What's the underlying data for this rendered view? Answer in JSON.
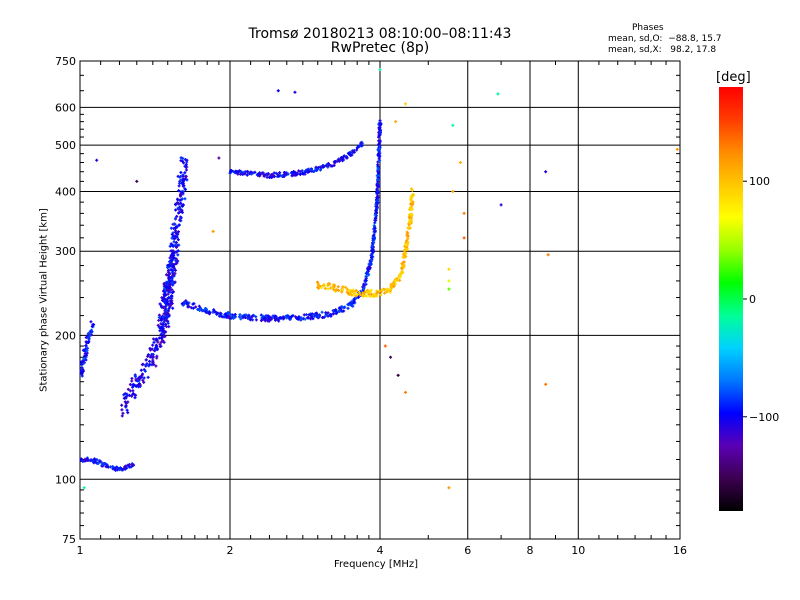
{
  "header": {
    "title": "Tromsø 20180213 08:10:00–08:11:43",
    "subtitle": "RwPretec (8p)"
  },
  "phases": {
    "heading": "Phases",
    "o_line": "mean, sd,O:  −88.8, 15.7",
    "x_line": "mean, sd,X:   98.2, 17.8"
  },
  "colors": {
    "background": "#ffffff",
    "grid": "#000000",
    "colorbar": [
      "#000000",
      "#3c0050",
      "#5a00b4",
      "#0000ff",
      "#0078ff",
      "#00d2ff",
      "#00ff96",
      "#00ff00",
      "#96ff00",
      "#ffff00",
      "#ffc800",
      "#ff8c00",
      "#ff3c00",
      "#ff0000"
    ]
  },
  "chart_data": {
    "type": "scatter",
    "title": "Tromsø 20180213 08:10:00–08:11:43",
    "subtitle": "RwPretec (8p)",
    "xlabel": "Frequency [MHz]",
    "ylabel": "Stationary phase Virtual Height [km]",
    "x_scale": "log",
    "y_scale": "log",
    "xlim": [
      1,
      16
    ],
    "ylim": [
      75,
      750
    ],
    "x_ticks": [
      1,
      2,
      4,
      6,
      8,
      10,
      16
    ],
    "y_ticks": [
      75,
      100,
      200,
      300,
      400,
      500,
      600,
      750
    ],
    "grid": true,
    "colorbar": {
      "title": "[deg]",
      "range": [
        -180,
        180
      ],
      "ticks": [
        100,
        0,
        -100
      ],
      "tick_labels": [
        "100",
        "0",
        "−100"
      ]
    },
    "segments": [
      {
        "desc": "low E trace",
        "f": [
          1.0,
          1.05,
          1.1,
          1.15,
          1.2,
          1.25,
          1.28
        ],
        "h": [
          110,
          110,
          108,
          106,
          105,
          106,
          107
        ],
        "phase": -100,
        "spread": 0.02
      },
      {
        "desc": "cusp rising",
        "f": [
          1.22,
          1.3,
          1.4,
          1.5,
          1.55
        ],
        "h": [
          140,
          160,
          180,
          220,
          300
        ],
        "phase": -105,
        "spread": 0.09
      },
      {
        "desc": "spread F cusp",
        "f": [
          1.45,
          1.52,
          1.58,
          1.62
        ],
        "h": [
          200,
          280,
          360,
          460
        ],
        "phase": -100,
        "spread": 0.1
      },
      {
        "desc": "O-mode F trace",
        "f": [
          1.6,
          1.8,
          2.0,
          2.4,
          2.8,
          3.2,
          3.5,
          3.7,
          3.85,
          3.95,
          4.0
        ],
        "h": [
          235,
          225,
          220,
          217,
          218,
          222,
          232,
          250,
          290,
          380,
          560
        ],
        "phase": -95,
        "spread": 0.025
      },
      {
        "desc": "upper O trace",
        "f": [
          2.0,
          2.4,
          2.8,
          3.2,
          3.5,
          3.7
        ],
        "h": [
          440,
          432,
          438,
          455,
          480,
          505
        ],
        "phase": -100,
        "spread": 0.02
      },
      {
        "desc": "X-mode trace",
        "f": [
          3.0,
          3.3,
          3.6,
          3.9,
          4.2,
          4.4,
          4.5,
          4.6,
          4.65
        ],
        "h": [
          255,
          250,
          245,
          245,
          250,
          265,
          300,
          350,
          400
        ],
        "phase": 100,
        "spread": 0.03
      },
      {
        "desc": "left patch",
        "f": [
          1.0,
          1.03,
          1.06
        ],
        "h": [
          165,
          190,
          210
        ],
        "phase": -95,
        "spread": 0.05
      }
    ],
    "scatter_points": [
      {
        "f": 2.5,
        "h": 650,
        "phase": -100
      },
      {
        "f": 2.7,
        "h": 645,
        "phase": -110
      },
      {
        "f": 4.0,
        "h": 720,
        "phase": -20
      },
      {
        "f": 4.5,
        "h": 610,
        "phase": 95
      },
      {
        "f": 4.3,
        "h": 560,
        "phase": 110
      },
      {
        "f": 5.8,
        "h": 460,
        "phase": 110
      },
      {
        "f": 5.6,
        "h": 400,
        "phase": 115
      },
      {
        "f": 5.9,
        "h": 360,
        "phase": 130
      },
      {
        "f": 5.9,
        "h": 320,
        "phase": 140
      },
      {
        "f": 5.5,
        "h": 275,
        "phase": 90
      },
      {
        "f": 5.5,
        "h": 260,
        "phase": 60
      },
      {
        "f": 5.5,
        "h": 250,
        "phase": 30
      },
      {
        "f": 5.6,
        "h": 550,
        "phase": -20
      },
      {
        "f": 6.9,
        "h": 640,
        "phase": -20
      },
      {
        "f": 7.0,
        "h": 375,
        "phase": -110
      },
      {
        "f": 8.6,
        "h": 440,
        "phase": -110
      },
      {
        "f": 8.7,
        "h": 295,
        "phase": 130
      },
      {
        "f": 8.6,
        "h": 158,
        "phase": 130
      },
      {
        "f": 5.5,
        "h": 96,
        "phase": 120
      },
      {
        "f": 4.1,
        "h": 190,
        "phase": 140
      },
      {
        "f": 4.2,
        "h": 180,
        "phase": -150
      },
      {
        "f": 4.35,
        "h": 165,
        "phase": -160
      },
      {
        "f": 4.5,
        "h": 152,
        "phase": 130
      },
      {
        "f": 1.02,
        "h": 96,
        "phase": -20
      },
      {
        "f": 1.08,
        "h": 465,
        "phase": -110
      },
      {
        "f": 15.8,
        "h": 490,
        "phase": 120
      },
      {
        "f": 1.3,
        "h": 420,
        "phase": -150
      },
      {
        "f": 1.9,
        "h": 470,
        "phase": -130
      },
      {
        "f": 1.85,
        "h": 330,
        "phase": 120
      }
    ]
  }
}
